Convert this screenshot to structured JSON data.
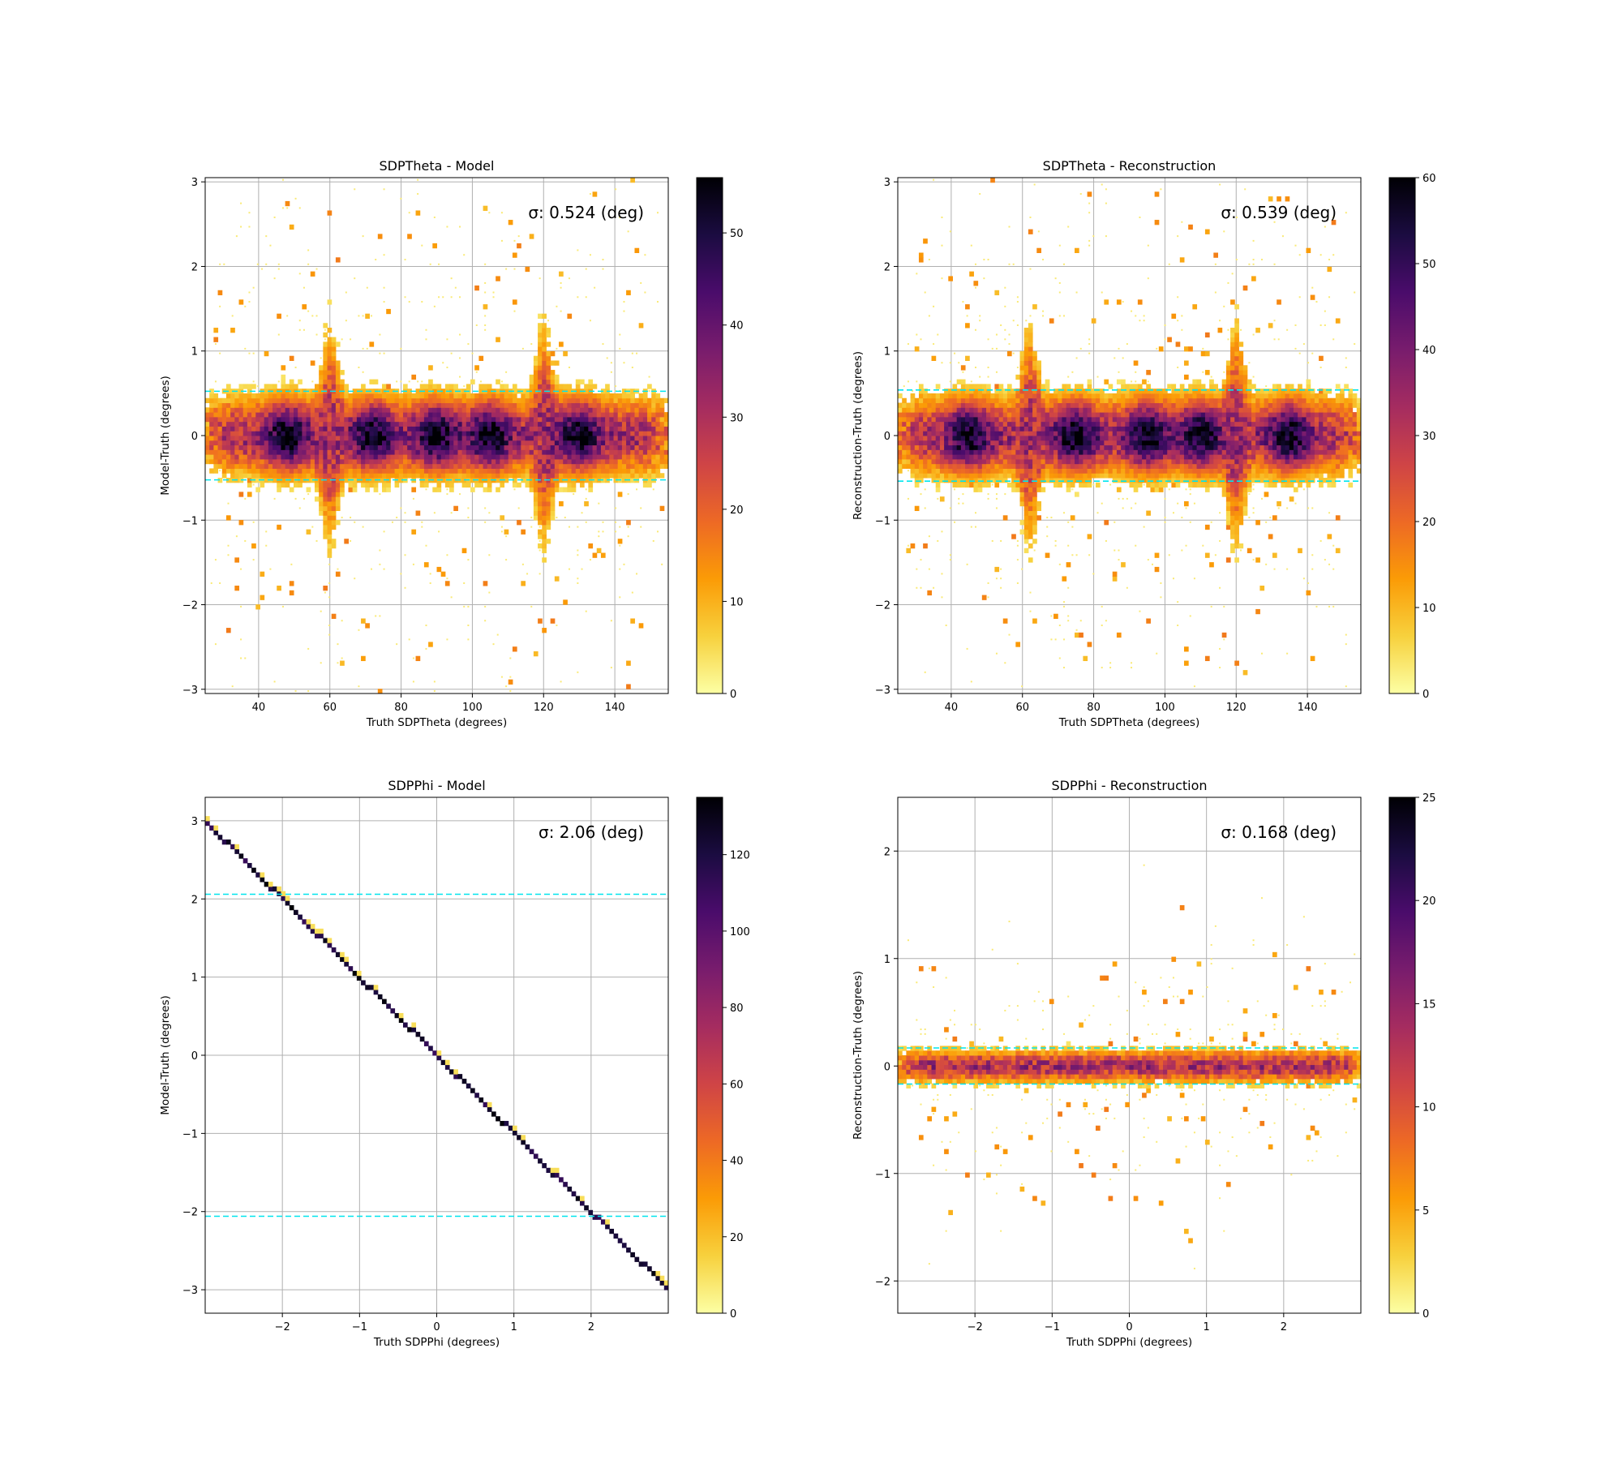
{
  "figure": {
    "colormap": "inferno_r",
    "colormap_stops": [
      "#fcffa4",
      "#f7d13d",
      "#fb9b06",
      "#ed6925",
      "#cf4446",
      "#a52c60",
      "#781c6d",
      "#4a0c6b",
      "#1b0c41",
      "#000004"
    ],
    "reference_line_color": "#00e5ee"
  },
  "chart_data": [
    {
      "id": "theta-model",
      "type": "heatmap",
      "title": "SDPTheta - Model",
      "xlabel": "Truth SDPTheta (degrees)",
      "ylabel": "Model-Truth (degrees)",
      "xlim": [
        25,
        155
      ],
      "ylim": [
        -3.05,
        3.05
      ],
      "xticks": [
        40,
        60,
        80,
        100,
        120,
        140
      ],
      "yticks": [
        -3,
        -2,
        -1,
        0,
        1,
        2,
        3
      ],
      "grid": true,
      "sigma_text": "σ: 0.524 (deg)",
      "sigma": 0.524,
      "colorbar": {
        "min": 0,
        "max": 56,
        "ticks": [
          0,
          10,
          20,
          30,
          40,
          50
        ]
      },
      "distribution": {
        "pattern": "horizontal_band",
        "band_center": 0,
        "band_halfwidth": 0.55,
        "density_peaks_x": [
          48,
          72,
          90,
          105,
          130
        ],
        "peak_count": 56,
        "spread_structures_x": [
          60,
          120
        ]
      }
    },
    {
      "id": "theta-reco",
      "type": "heatmap",
      "title": "SDPTheta - Reconstruction",
      "xlabel": "Truth SDPTheta (degrees)",
      "ylabel": "Reconstruction-Truth (degrees)",
      "xlim": [
        25,
        155
      ],
      "ylim": [
        -3.05,
        3.05
      ],
      "xticks": [
        40,
        60,
        80,
        100,
        120,
        140
      ],
      "yticks": [
        -3,
        -2,
        -1,
        0,
        1,
        2,
        3
      ],
      "grid": true,
      "sigma_text": "σ: 0.539 (deg)",
      "sigma": 0.539,
      "colorbar": {
        "min": 0,
        "max": 60,
        "ticks": [
          0,
          10,
          20,
          30,
          40,
          50,
          60
        ]
      },
      "distribution": {
        "pattern": "horizontal_band",
        "band_center": 0,
        "band_halfwidth": 0.55,
        "density_peaks_x": [
          45,
          75,
          95,
          110,
          135
        ],
        "peak_count": 60,
        "spread_structures_x": [
          62,
          120
        ]
      }
    },
    {
      "id": "phi-model",
      "type": "heatmap",
      "title": "SDPPhi - Model",
      "xlabel": "Truth SDPPhi (degrees)",
      "ylabel": "Model-Truth (degrees)",
      "xlim": [
        -3.0,
        3.0
      ],
      "ylim": [
        -3.3,
        3.3
      ],
      "xticks": [
        -2,
        -1,
        0,
        1,
        2
      ],
      "yticks": [
        -3,
        -2,
        -1,
        0,
        1,
        2,
        3
      ],
      "grid": true,
      "sigma_text": "σ: 2.06 (deg)",
      "sigma": 2.06,
      "colorbar": {
        "min": 0,
        "max": 135,
        "ticks": [
          0,
          20,
          40,
          60,
          80,
          100,
          120
        ]
      },
      "distribution": {
        "pattern": "diagonal_line",
        "relation": "y = -x",
        "peak_count": 135
      }
    },
    {
      "id": "phi-reco",
      "type": "heatmap",
      "title": "SDPPhi - Reconstruction",
      "xlabel": "Truth SDPPhi (degrees)",
      "ylabel": "Reconstruction-Truth (degrees)",
      "xlim": [
        -3.0,
        3.0
      ],
      "ylim": [
        -2.3,
        2.5
      ],
      "xticks": [
        -2,
        -1,
        0,
        1,
        2
      ],
      "yticks": [
        -2,
        -1,
        0,
        1,
        2
      ],
      "grid": true,
      "sigma_text": "σ: 0.168 (deg)",
      "sigma": 0.168,
      "colorbar": {
        "min": 0,
        "max": 25,
        "ticks": [
          0,
          5,
          10,
          15,
          20,
          25
        ]
      },
      "distribution": {
        "pattern": "horizontal_band",
        "band_center": 0,
        "band_halfwidth": 0.18,
        "density_peaks_x": [],
        "peak_count": 25
      }
    }
  ]
}
